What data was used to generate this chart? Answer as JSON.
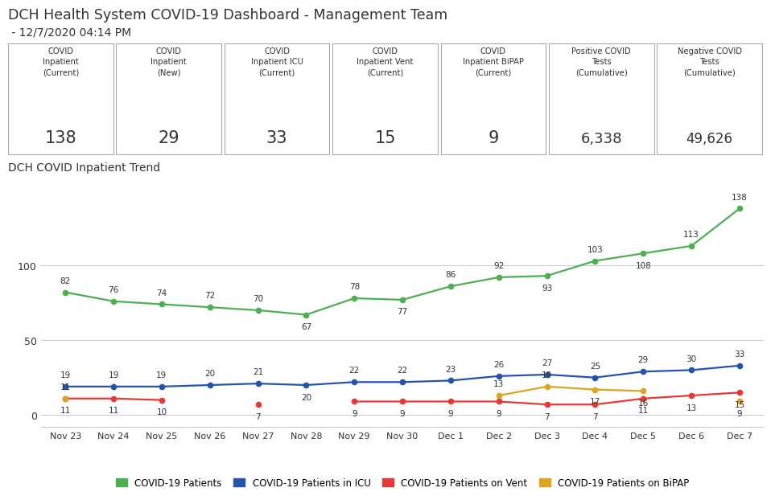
{
  "title": "DCH Health System COVID-19 Dashboard - Management Team",
  "subtitle": " - 12/7/2020 04:14 PM",
  "boxes": [
    {
      "label": "COVID\nInpatient\n(Current)",
      "value": "138"
    },
    {
      "label": "COVID\nInpatient\n(New)",
      "value": "29"
    },
    {
      "label": "COVID\nInpatient ICU\n(Current)",
      "value": "33"
    },
    {
      "label": "COVID\nInpatient Vent\n(Current)",
      "value": "15"
    },
    {
      "label": "COVID\nInpatient BiPAP\n(Current)",
      "value": "9"
    },
    {
      "label": "Positive COVID\nTests\n(Cumulative)",
      "value": "6,338"
    },
    {
      "label": "Negative COVID\nTests\n(Cumulative)",
      "value": "49,626"
    }
  ],
  "chart_title": "DCH COVID Inpatient Trend",
  "x_labels": [
    "Nov 23",
    "Nov 24",
    "Nov 25",
    "Nov 26",
    "Nov 27",
    "Nov 28",
    "Nov 29",
    "Nov 30",
    "Dec 1",
    "Dec 2",
    "Dec 3",
    "Dec 4",
    "Dec 5",
    "Dec 6",
    "Dec 7"
  ],
  "green": [
    82,
    76,
    74,
    72,
    70,
    67,
    78,
    77,
    86,
    92,
    93,
    103,
    108,
    113,
    138
  ],
  "blue": [
    19,
    19,
    19,
    20,
    21,
    20,
    22,
    22,
    23,
    26,
    27,
    25,
    29,
    30,
    33
  ],
  "red": [
    11,
    11,
    10,
    null,
    7,
    null,
    9,
    9,
    9,
    9,
    7,
    7,
    11,
    13,
    15
  ],
  "yellow": [
    11,
    null,
    null,
    null,
    null,
    null,
    null,
    null,
    null,
    13,
    19,
    17,
    16,
    null,
    9
  ],
  "green_color": "#4CAF50",
  "blue_color": "#2255AA",
  "red_color": "#E53935",
  "yellow_color": "#DAA520",
  "yticks": [
    0,
    50,
    100
  ],
  "ylim": [
    -8,
    158
  ],
  "legend_labels": [
    "COVID-19 Patients",
    "COVID-19 Patients in ICU",
    "COVID-19 Patients on Vent",
    "COVID-19 Patients on BiPAP"
  ],
  "bg_color": "#FFFFFF",
  "grid_color": "#CCCCCC",
  "text_color": "#333333",
  "green_annot_above": [
    true,
    true,
    true,
    true,
    true,
    false,
    true,
    false,
    true,
    true,
    false,
    true,
    false,
    true,
    true
  ],
  "blue_annot_above": [
    true,
    true,
    true,
    true,
    true,
    false,
    true,
    true,
    true,
    true,
    true,
    true,
    true,
    true,
    true
  ],
  "red_annot_above": [
    false,
    false,
    false,
    false,
    false,
    false,
    false,
    false,
    false,
    false,
    false,
    false,
    false,
    false,
    false
  ],
  "yellow_annot_above": [
    true,
    true,
    true,
    true,
    true,
    true,
    true,
    true,
    true,
    true,
    true,
    false,
    false,
    true,
    false
  ]
}
